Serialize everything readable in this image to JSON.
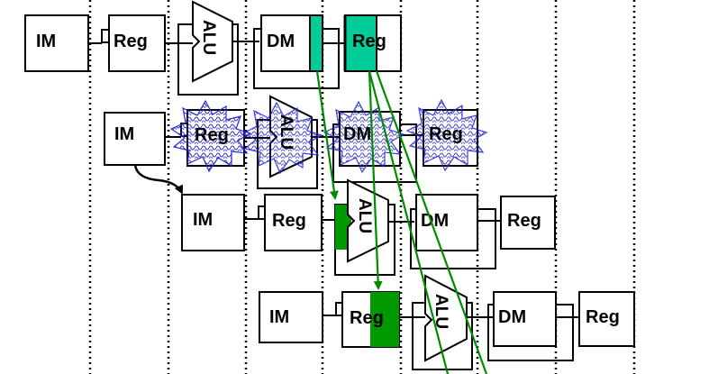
{
  "labels": {
    "im": "IM",
    "reg": "Reg",
    "alu": "ALU",
    "dm": "DM"
  },
  "colors": {
    "stroke": "#000000",
    "forward_arrow": "#008c00",
    "light_green": "#00cc99",
    "dark_green": "#009900",
    "stall_pattern": "#2a2ad0"
  },
  "rows": [
    {
      "stage_labels": [
        "IM",
        "Reg",
        "ALU",
        "DM",
        "Reg"
      ],
      "highlight": "result write"
    },
    {
      "stage_labels": [
        "IM",
        "Reg",
        "ALU",
        "DM",
        "Reg"
      ],
      "stalled": true
    },
    {
      "stage_labels": [
        "IM",
        "Reg",
        "ALU",
        "DM",
        "Reg"
      ],
      "highlight": "operand read"
    },
    {
      "stage_labels": [
        "IM",
        "Reg",
        "ALU",
        "DM",
        "Reg"
      ],
      "highlight": "operand read"
    }
  ]
}
